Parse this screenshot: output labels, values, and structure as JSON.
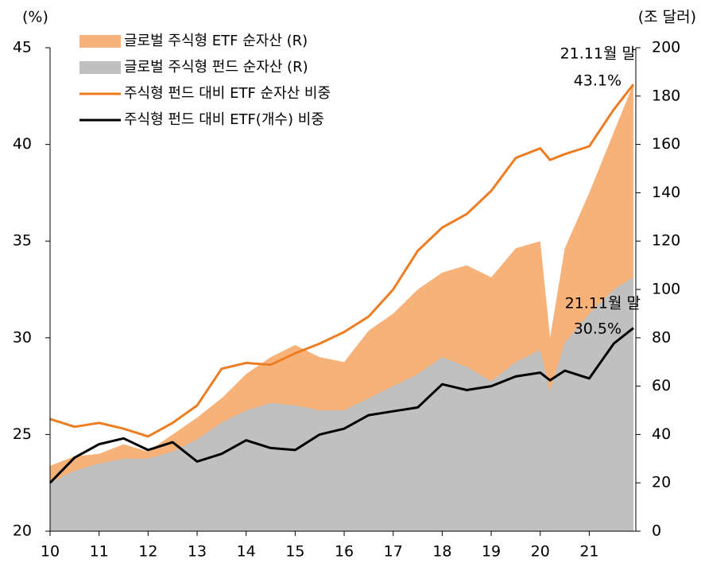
{
  "chart_data": {
    "type": "line",
    "y_label": "(%)",
    "y2_label": "(조 달러)",
    "x": [
      10,
      10.5,
      11,
      11.5,
      12,
      12.5,
      13,
      13.5,
      14,
      14.5,
      15,
      15.5,
      16,
      16.5,
      17,
      17.5,
      18,
      18.5,
      19,
      19.5,
      20,
      20.2,
      20.5,
      21,
      21.5,
      21.9
    ],
    "xlim": [
      10,
      21.95
    ],
    "xticks": [
      10,
      11,
      12,
      13,
      14,
      15,
      16,
      17,
      18,
      19,
      20,
      21
    ],
    "ylim": [
      20,
      45
    ],
    "yticks": [
      20,
      25,
      30,
      35,
      40,
      45
    ],
    "y2lim": [
      0,
      200
    ],
    "y2ticks": [
      0,
      20,
      40,
      60,
      80,
      100,
      120,
      140,
      160,
      180,
      200
    ],
    "legend": "upper left",
    "series": [
      {
        "name": "글로벌 주식형 ETF 순자산 (R)",
        "kind": "area",
        "axis": "y2",
        "color": "#f7b27a",
        "values": [
          27,
          31,
          32,
          36,
          33,
          40,
          47,
          55,
          65,
          72,
          77,
          72,
          70,
          83,
          90,
          100,
          107,
          110,
          105,
          117,
          120,
          80,
          117,
          140,
          165,
          185
        ]
      },
      {
        "name": "글로벌 주식형 펀드 순자산 (R)",
        "kind": "area",
        "axis": "y2",
        "color": "#c0c0c0",
        "values": [
          20,
          25,
          28,
          30,
          30,
          33,
          38,
          45,
          50,
          53,
          52,
          50,
          50,
          55,
          60,
          65,
          72,
          68,
          62,
          70,
          75,
          58,
          78,
          90,
          100,
          105
        ]
      },
      {
        "name": "주식형 펀드 대비 ETF 순자산 비중",
        "kind": "line",
        "color": "#ee7d22",
        "values": [
          25.8,
          25.4,
          25.6,
          25.3,
          24.9,
          25.6,
          26.5,
          28.4,
          28.7,
          28.6,
          29.2,
          29.7,
          30.3,
          31.1,
          32.5,
          34.5,
          35.7,
          36.4,
          37.6,
          39.3,
          39.8,
          39.2,
          39.5,
          39.9,
          41.8,
          43.1
        ]
      },
      {
        "name": "주식형 펀드 대비 ETF(개수) 비중",
        "kind": "line",
        "color": "#000000",
        "values": [
          22.5,
          23.8,
          24.5,
          24.8,
          24.2,
          24.6,
          23.6,
          24.0,
          24.7,
          24.3,
          24.2,
          25.0,
          25.3,
          26.0,
          26.2,
          26.4,
          27.6,
          27.3,
          27.5,
          28.0,
          28.2,
          27.8,
          28.3,
          27.9,
          29.7,
          30.5
        ]
      }
    ],
    "annotations": [
      "21.11월 말",
      "43.1%",
      "21.11월 말",
      "30.5%"
    ]
  }
}
